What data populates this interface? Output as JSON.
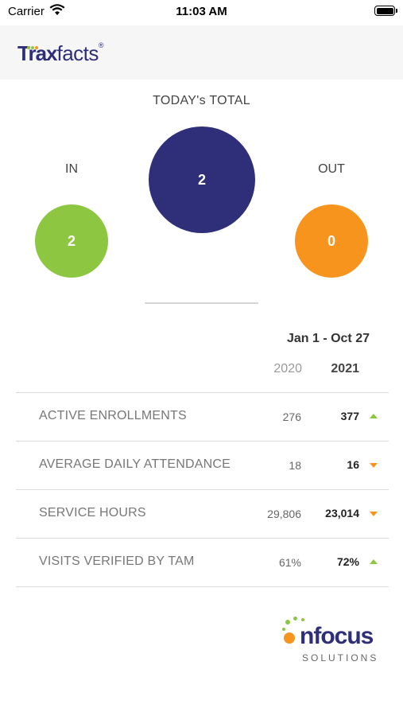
{
  "status_bar": {
    "carrier": "Carrier",
    "time": "11:03 AM"
  },
  "header": {
    "logo_trax": "Trax",
    "logo_facts": "facts",
    "logo_mark": "®"
  },
  "today": {
    "title": "TODAY's TOTAL",
    "in_label": "IN",
    "out_label": "OUT",
    "total_value": "2",
    "in_value": "2",
    "out_value": "0"
  },
  "comparison": {
    "date_range": "Jan 1 - Oct 27",
    "year_prev": "2020",
    "year_curr": "2021"
  },
  "metrics": [
    {
      "label": "ACTIVE ENROLLMENTS",
      "prev": "276",
      "curr": "377",
      "trend": "up"
    },
    {
      "label": "AVERAGE DAILY ATTENDANCE",
      "prev": "18",
      "curr": "16",
      "trend": "down"
    },
    {
      "label": "SERVICE HOURS",
      "prev": "29,806",
      "curr": "23,014",
      "trend": "down"
    },
    {
      "label": "VISITS VERIFIED BY TAM",
      "prev": "61%",
      "curr": "72%",
      "trend": "up"
    }
  ],
  "footer": {
    "brand": "nfocus",
    "sub": "SOLUTIONS"
  },
  "colors": {
    "navy": "#2e2e79",
    "green": "#8dc641",
    "orange": "#f7941d"
  }
}
